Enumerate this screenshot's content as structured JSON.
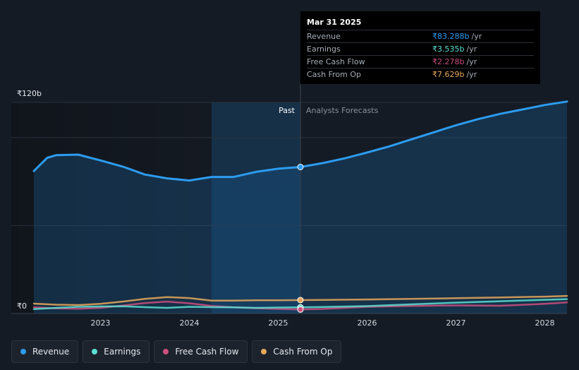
{
  "chart_data": {
    "type": "line",
    "y_unit_label_top": "₹120b",
    "y_unit_label_zero": "₹0",
    "ylim": [
      0,
      120
    ],
    "xlim": [
      2022.25,
      2028.25
    ],
    "x_ticks": [
      {
        "value": 2023,
        "label": "2023"
      },
      {
        "value": 2024,
        "label": "2024"
      },
      {
        "value": 2025,
        "label": "2025"
      },
      {
        "value": 2026,
        "label": "2026"
      },
      {
        "value": 2027,
        "label": "2027"
      },
      {
        "value": 2028,
        "label": "2028"
      }
    ],
    "y_gridlines": [
      0,
      50,
      100,
      120
    ],
    "past_label": "Past",
    "forecast_label": "Analysts Forecasts",
    "divider_x": 2025.25,
    "highlight_start_x": 2024.25,
    "series": [
      {
        "name": "Revenue",
        "color": "#2d9cf0",
        "area": true,
        "points": [
          [
            2022.25,
            81
          ],
          [
            2022.4,
            88.5
          ],
          [
            2022.5,
            90
          ],
          [
            2022.75,
            90.3
          ],
          [
            2023.0,
            87
          ],
          [
            2023.25,
            83.5
          ],
          [
            2023.5,
            79
          ],
          [
            2023.75,
            76.8
          ],
          [
            2024.0,
            75.6
          ],
          [
            2024.25,
            77.6
          ],
          [
            2024.5,
            77.6
          ],
          [
            2024.75,
            80.5
          ],
          [
            2025.0,
            82.3
          ],
          [
            2025.25,
            83.288
          ],
          [
            2025.5,
            85.5
          ],
          [
            2025.75,
            88.2
          ],
          [
            2026.0,
            91.5
          ],
          [
            2026.25,
            95
          ],
          [
            2026.5,
            99
          ],
          [
            2026.75,
            103
          ],
          [
            2027.0,
            107
          ],
          [
            2027.25,
            110.5
          ],
          [
            2027.5,
            113.5
          ],
          [
            2027.75,
            116
          ],
          [
            2028.0,
            118.5
          ],
          [
            2028.25,
            120.5
          ]
        ]
      },
      {
        "name": "Earnings",
        "color": "#5ce0d2",
        "area": false,
        "points": [
          [
            2022.25,
            2.5
          ],
          [
            2022.5,
            3.2
          ],
          [
            2022.75,
            3.8
          ],
          [
            2023.0,
            4
          ],
          [
            2023.25,
            4.1
          ],
          [
            2023.5,
            3.6
          ],
          [
            2023.75,
            3.2
          ],
          [
            2024.0,
            3.8
          ],
          [
            2024.25,
            3.6
          ],
          [
            2024.5,
            3.5
          ],
          [
            2024.75,
            3.2
          ],
          [
            2025.0,
            3.4
          ],
          [
            2025.25,
            3.535
          ],
          [
            2025.5,
            3.7
          ],
          [
            2026.0,
            4.2
          ],
          [
            2026.5,
            5.2
          ],
          [
            2027.0,
            6.2
          ],
          [
            2027.5,
            7
          ],
          [
            2028.0,
            7.8
          ],
          [
            2028.25,
            8.2
          ]
        ]
      },
      {
        "name": "Free Cash Flow",
        "color": "#cc4f7e",
        "area": false,
        "points": [
          [
            2022.25,
            3.5
          ],
          [
            2022.5,
            2.9
          ],
          [
            2022.75,
            2.7
          ],
          [
            2023.0,
            3.2
          ],
          [
            2023.25,
            4.5
          ],
          [
            2023.5,
            6
          ],
          [
            2023.75,
            6.8
          ],
          [
            2024.0,
            5.8
          ],
          [
            2024.25,
            4.3
          ],
          [
            2024.5,
            3.5
          ],
          [
            2024.75,
            3
          ],
          [
            2025.0,
            2.6
          ],
          [
            2025.25,
            2.278
          ],
          [
            2025.5,
            2.6
          ],
          [
            2026.0,
            3.8
          ],
          [
            2026.5,
            4.3
          ],
          [
            2027.0,
            4.6
          ],
          [
            2027.5,
            4.4
          ],
          [
            2028.0,
            5.5
          ],
          [
            2028.25,
            6.3
          ]
        ]
      },
      {
        "name": "Cash From Op",
        "color": "#e7a85a",
        "area": false,
        "points": [
          [
            2022.25,
            5.6
          ],
          [
            2022.5,
            5
          ],
          [
            2022.75,
            4.8
          ],
          [
            2023.0,
            5.5
          ],
          [
            2023.25,
            6.8
          ],
          [
            2023.5,
            8.3
          ],
          [
            2023.75,
            9.3
          ],
          [
            2024.0,
            8.8
          ],
          [
            2024.25,
            7.3
          ],
          [
            2024.5,
            7.3
          ],
          [
            2024.75,
            7.5
          ],
          [
            2025.0,
            7.5
          ],
          [
            2025.25,
            7.629
          ],
          [
            2025.5,
            7.7
          ],
          [
            2026.0,
            8
          ],
          [
            2026.5,
            8.3
          ],
          [
            2027.0,
            8.7
          ],
          [
            2027.5,
            9.1
          ],
          [
            2028.0,
            9.6
          ],
          [
            2028.25,
            10
          ]
        ]
      }
    ]
  },
  "tooltip": {
    "date": "Mar 31 2025",
    "rows": [
      {
        "name": "Revenue",
        "value": "₹83.288b",
        "unit": "/yr",
        "color": "#2d9cf0"
      },
      {
        "name": "Earnings",
        "value": "₹3.535b",
        "unit": "/yr",
        "color": "#5ce0d2"
      },
      {
        "name": "Free Cash Flow",
        "value": "₹2.278b",
        "unit": "/yr",
        "color": "#cc4f7e"
      },
      {
        "name": "Cash From Op",
        "value": "₹7.629b",
        "unit": "/yr",
        "color": "#e7a85a"
      }
    ]
  },
  "legend": [
    {
      "label": "Revenue",
      "color": "#2d9cf0"
    },
    {
      "label": "Earnings",
      "color": "#5ce0d2"
    },
    {
      "label": "Free Cash Flow",
      "color": "#cc4f7e"
    },
    {
      "label": "Cash From Op",
      "color": "#e7a85a"
    }
  ]
}
